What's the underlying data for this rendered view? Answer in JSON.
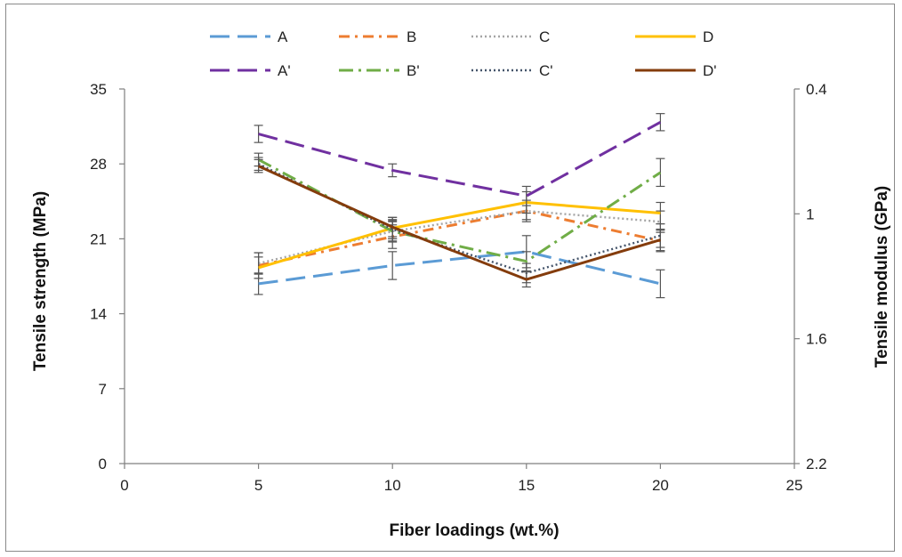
{
  "chart_data": {
    "type": "line",
    "xlabel": "Fiber loadings (wt.%)",
    "ylabel": "Tensile strength (MPa)",
    "y2label": "Tensile modulus (GPa)",
    "xlim": [
      0,
      25
    ],
    "x_ticks": [
      0,
      5,
      10,
      15,
      20,
      25
    ],
    "ylim": [
      0,
      35
    ],
    "y_ticks": [
      0,
      7,
      14,
      21,
      28,
      35
    ],
    "y2lim": [
      0.4,
      2.2
    ],
    "y2_reversed": true,
    "y2_ticks": [
      0.4,
      1,
      1.6,
      2.2
    ],
    "legend_position": "top",
    "grid": false,
    "x": [
      5,
      10,
      15,
      20
    ],
    "series": [
      {
        "name": "A",
        "color": "#5b9bd5",
        "dash": "long-dash",
        "values": [
          16.8,
          18.5,
          19.8,
          16.8
        ],
        "errors": [
          1.0,
          1.3,
          1.5,
          1.3
        ]
      },
      {
        "name": "B",
        "color": "#ed7d31",
        "dash": "dash-dot",
        "values": [
          18.5,
          21.2,
          23.6,
          20.8
        ],
        "errors": [
          1.2,
          1.1,
          0.8,
          1.0
        ]
      },
      {
        "name": "C",
        "color": "#a5a5a5",
        "dash": "dot",
        "values": [
          18.7,
          21.7,
          23.6,
          22.6
        ],
        "errors": [
          1.0,
          1.0,
          1.0,
          1.0
        ]
      },
      {
        "name": "D",
        "color": "#ffc000",
        "dash": "solid",
        "values": [
          18.3,
          22.0,
          24.4,
          23.4
        ],
        "errors": [
          1.0,
          1.0,
          1.0,
          1.0
        ]
      },
      {
        "name": "A'",
        "color": "#7030a0",
        "dash": "long-dash",
        "values": [
          30.8,
          27.4,
          25.0,
          31.9
        ],
        "errors": [
          0.8,
          0.6,
          0.9,
          0.8
        ]
      },
      {
        "name": "B'",
        "color": "#70ad47",
        "dash": "long-dash-dot",
        "values": [
          28.4,
          21.7,
          18.9,
          27.2
        ],
        "errors": [
          0.6,
          0.9,
          0.9,
          1.3
        ]
      },
      {
        "name": "C'",
        "color": "#44546a",
        "dash": "dot",
        "values": [
          28.0,
          21.9,
          17.8,
          21.3
        ],
        "errors": [
          0.6,
          0.9,
          0.9,
          1.1
        ]
      },
      {
        "name": "D'",
        "color": "#843c0c",
        "dash": "solid",
        "values": [
          27.8,
          22.1,
          17.2,
          20.9
        ],
        "errors": [
          0.6,
          0.9,
          0.7,
          1.0
        ]
      }
    ]
  }
}
